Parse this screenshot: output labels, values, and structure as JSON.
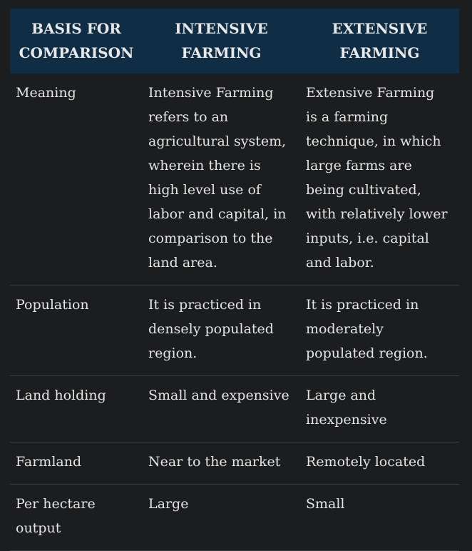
{
  "table": {
    "headers": [
      [
        "BASIS FOR",
        "COMPARISON"
      ],
      [
        "INTENSIVE",
        "FARMING"
      ],
      [
        "EXTENSIVE",
        "FARMING"
      ]
    ],
    "rows": [
      {
        "basis": [
          "Meaning"
        ],
        "intensive": [
          "Intensive Farming",
          "refers to an",
          "agricultural system,",
          "wherein there is",
          "high level use of",
          "labor and capital, in",
          "comparison to the",
          "land area."
        ],
        "extensive": [
          "Extensive Farming",
          "is a farming",
          "technique, in which",
          "large farms are",
          "being cultivated,",
          "with relatively lower",
          "inputs, i.e. capital",
          "and labor."
        ]
      },
      {
        "basis": [
          "Population"
        ],
        "intensive": [
          "It is practiced in",
          "densely populated",
          "region."
        ],
        "extensive": [
          "It is practiced in",
          "moderately",
          "populated region."
        ]
      },
      {
        "basis": [
          "Land holding"
        ],
        "intensive": [
          "Small and expensive"
        ],
        "extensive": [
          "Large and",
          "inexpensive"
        ]
      },
      {
        "basis": [
          "Farmland"
        ],
        "intensive": [
          "Near to the market"
        ],
        "extensive": [
          "Remotely located"
        ]
      },
      {
        "basis": [
          "Per hectare",
          "output"
        ],
        "intensive": [
          "Large"
        ],
        "extensive": [
          "Small"
        ]
      }
    ]
  }
}
